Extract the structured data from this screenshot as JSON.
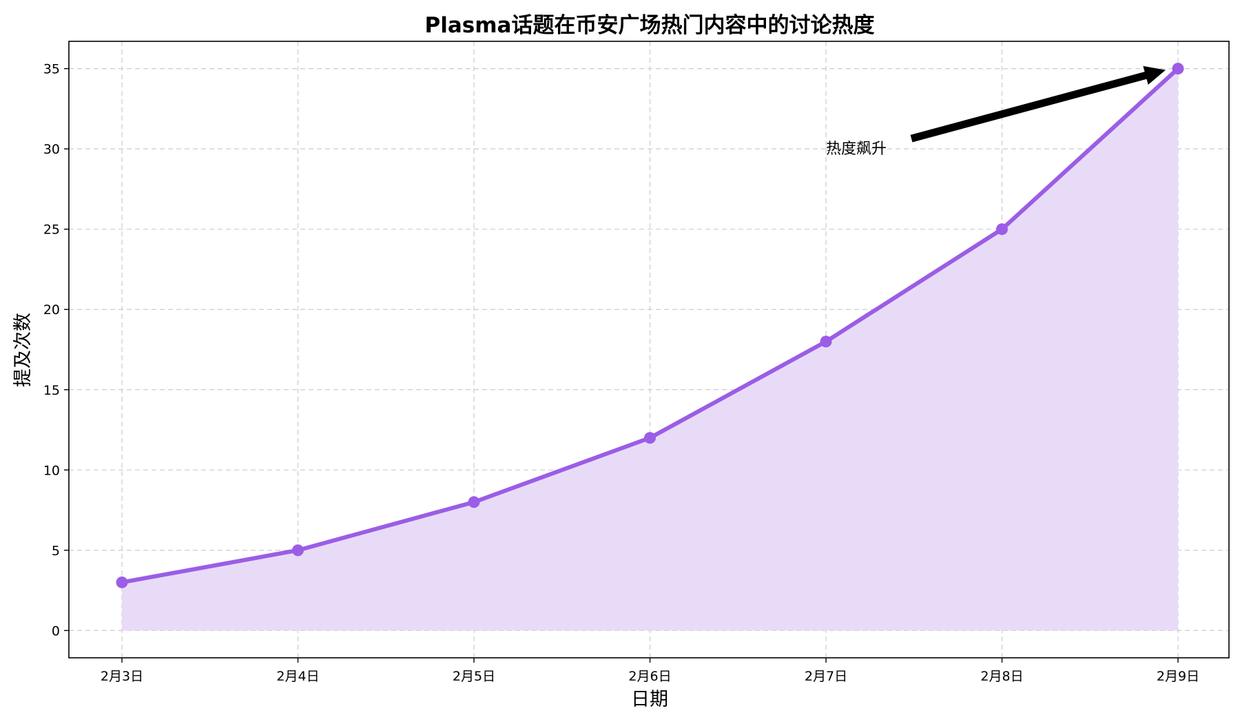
{
  "chart_data": {
    "type": "area",
    "title": "Plasma话题在币安广场热门内容中的讨论热度",
    "xlabel": "日期",
    "ylabel": "提及次数",
    "categories": [
      "2月3日",
      "2月4日",
      "2月5日",
      "2月6日",
      "2月7日",
      "2月8日",
      "2月9日"
    ],
    "series": [
      {
        "values": [
          3,
          5,
          8,
          12,
          18,
          25,
          35
        ],
        "color": "#9b5de5",
        "fill_color": "#e8dbf8"
      }
    ],
    "ylim": [
      -1.7,
      36.7
    ],
    "yticks": [
      0,
      5,
      10,
      15,
      20,
      25,
      30,
      35
    ],
    "grid": true,
    "annotation": {
      "text": "热度飙升",
      "target_category": "2月9日",
      "target_value": 35,
      "text_anchor_category": "2月7日",
      "text_anchor_value": 30
    }
  }
}
